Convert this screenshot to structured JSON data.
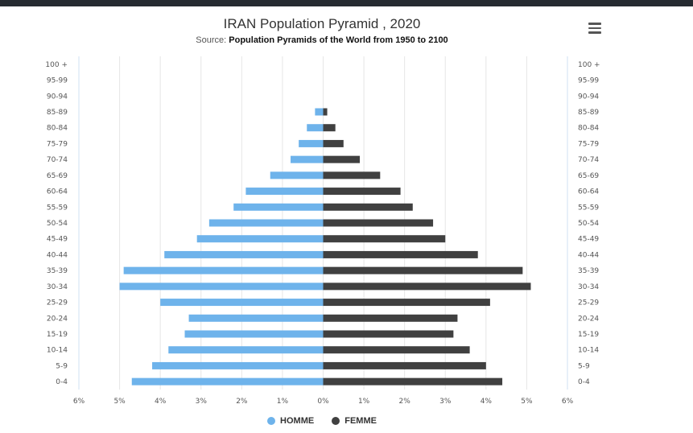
{
  "chart_data": {
    "type": "bar",
    "orientation": "horizontal",
    "title": "IRAN Population Pyramid , 2020",
    "subtitle_prefix": "Source: ",
    "subtitle_source": "Population Pyramids of the World from 1950 to 2100",
    "categories": [
      "100 +",
      "95-99",
      "90-94",
      "85-89",
      "80-84",
      "75-79",
      "70-74",
      "65-69",
      "60-64",
      "55-59",
      "50-54",
      "45-49",
      "40-44",
      "35-39",
      "30-34",
      "25-29",
      "20-24",
      "15-19",
      "10-14",
      "5-9",
      "0-4"
    ],
    "series": [
      {
        "name": "HOMME",
        "color": "#6eb3eb",
        "values": [
          0,
          0,
          0,
          0.2,
          0.4,
          0.6,
          0.8,
          1.3,
          1.9,
          2.2,
          2.8,
          3.1,
          3.9,
          4.9,
          5.0,
          4.0,
          3.3,
          3.4,
          3.8,
          4.2,
          4.7
        ]
      },
      {
        "name": "FEMME",
        "color": "#404040",
        "values": [
          0,
          0,
          0,
          0.1,
          0.3,
          0.5,
          0.9,
          1.4,
          1.9,
          2.2,
          2.7,
          3.0,
          3.8,
          4.9,
          5.1,
          4.1,
          3.3,
          3.2,
          3.6,
          4.0,
          4.4
        ]
      }
    ],
    "xticks": [
      "6%",
      "5%",
      "4%",
      "3%",
      "2%",
      "1%",
      "0%",
      "1%",
      "2%",
      "3%",
      "4%",
      "5%",
      "6%"
    ],
    "xlim": [
      -6,
      6
    ],
    "xlabel": "",
    "ylabel": "",
    "grid": true,
    "legend_position": "bottom"
  },
  "menu": {
    "icon": "hamburger-menu-icon"
  }
}
